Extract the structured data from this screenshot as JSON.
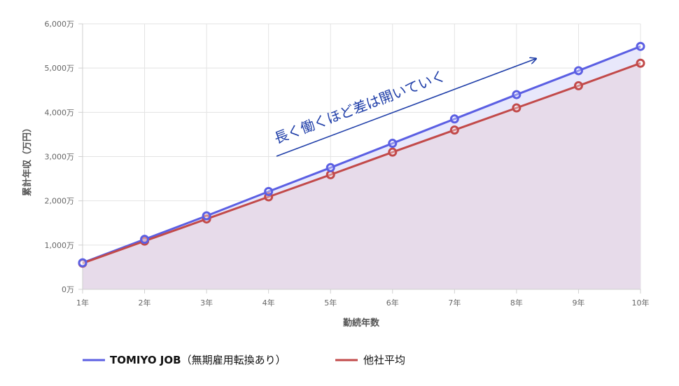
{
  "chart_data": {
    "type": "line",
    "title": "",
    "xlabel": "勤続年数",
    "ylabel": "累計年収（万円）",
    "categories": [
      "1年",
      "2年",
      "3年",
      "4年",
      "5年",
      "6年",
      "7年",
      "8年",
      "9年",
      "10年"
    ],
    "yticks": [
      "0万",
      "1,000万",
      "2,000万",
      "3,000万",
      "4,000万",
      "5,000万",
      "6,000万"
    ],
    "ylim": [
      0,
      6000
    ],
    "grid": true,
    "legend_position": "bottom-left",
    "series": [
      {
        "name": "TOMIYO JOB（無期雇用転換あり）",
        "legend_prefix": "TOMIYO JOB",
        "legend_suffix": "（無期雇用転換あり）",
        "color": "#5b5fe3",
        "fill": "#e8e8fb",
        "values": [
          600,
          1130,
          1660,
          2210,
          2750,
          3300,
          3850,
          4400,
          4940,
          5490
        ]
      },
      {
        "name": "他社平均",
        "color": "#c24a4a",
        "fill": "#e7dbea",
        "values": [
          590,
          1090,
          1590,
          2090,
          2590,
          3100,
          3600,
          4100,
          4600,
          5110
        ]
      }
    ],
    "annotation": {
      "text": "長く働くほど差は開いていく",
      "color": "#1f3ea8",
      "arrow": true
    }
  }
}
